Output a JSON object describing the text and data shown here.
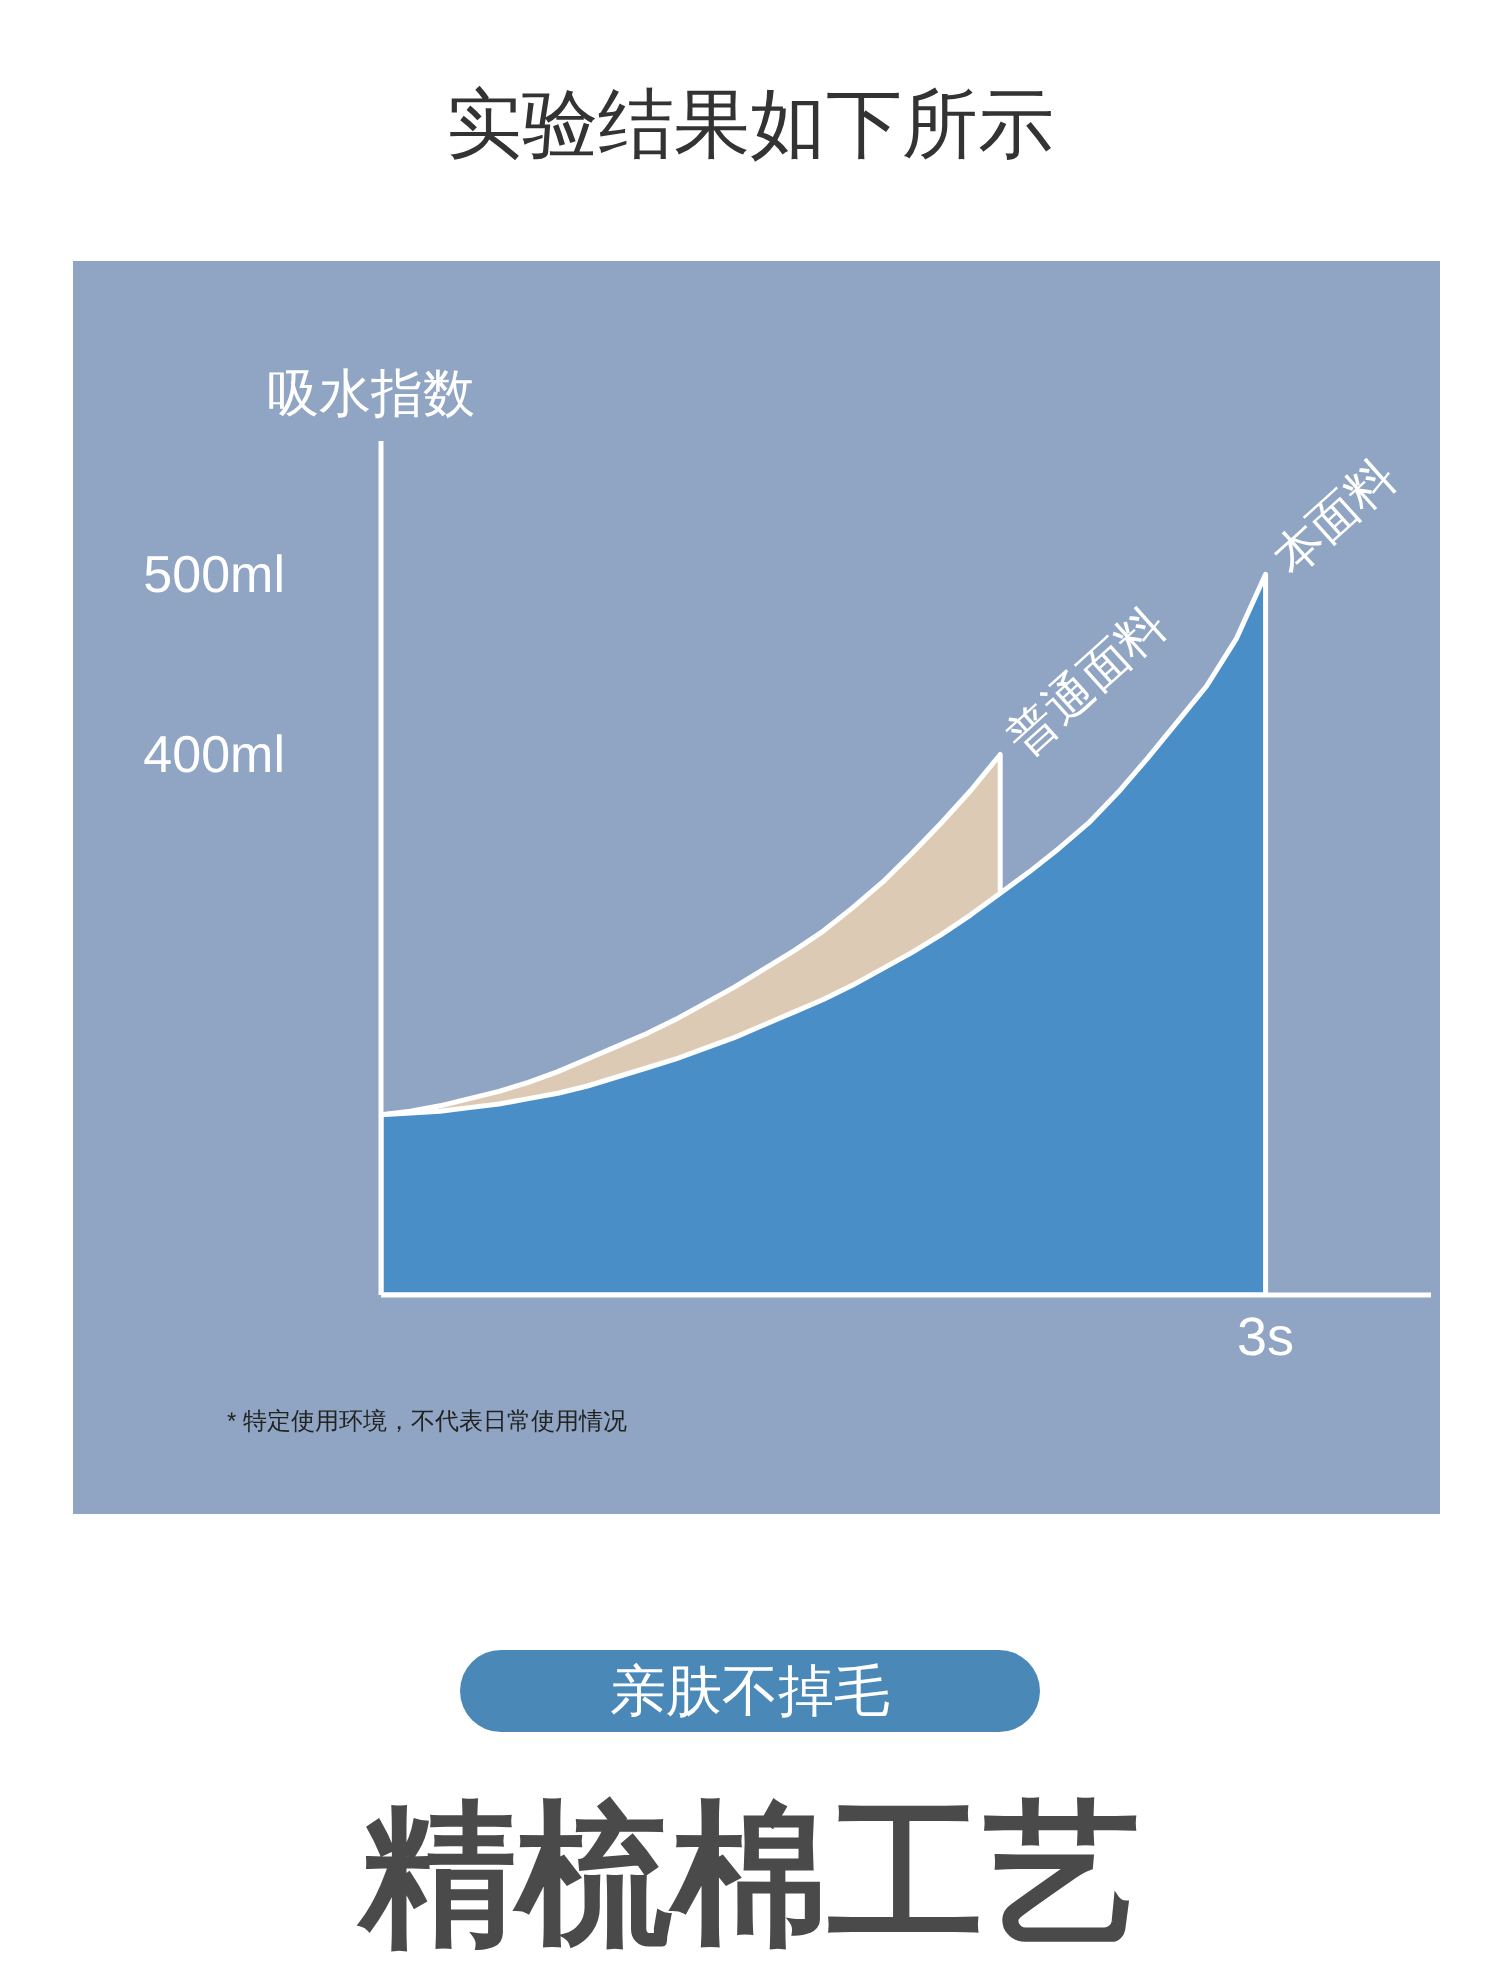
{
  "chart_data": {
    "type": "area",
    "title": "实验结果如下所示",
    "ylabel": "吸水指数",
    "categories": [
      null,
      null,
      null,
      null,
      null,
      null,
      null,
      null,
      null,
      null,
      null,
      null,
      null,
      null,
      null,
      null,
      null,
      null,
      null,
      null,
      null,
      null,
      null,
      null,
      null,
      null,
      null,
      null,
      null,
      null,
      "3s"
    ],
    "series": [
      {
        "name": "普通面料",
        "color": "#dccab5",
        "values": [
          200,
          202,
          205,
          209,
          213,
          218,
          224,
          231,
          238,
          245,
          253,
          262,
          271,
          281,
          291,
          302,
          315,
          329,
          345,
          362,
          380,
          400,
          null,
          null,
          null,
          null,
          null,
          null,
          null,
          null,
          null
        ]
      },
      {
        "name": "本面料",
        "color": "#4a8ec8",
        "values": [
          200,
          201,
          202,
          204,
          206,
          209,
          212,
          216,
          221,
          226,
          231,
          237,
          243,
          250,
          257,
          264,
          272,
          281,
          290,
          300,
          311,
          323,
          335,
          348,
          362,
          379,
          398,
          418,
          438,
          464,
          500
        ]
      }
    ],
    "ylim": [
      100,
      574
    ],
    "yticks": [
      {
        "value": 400,
        "label": "400ml"
      },
      {
        "value": 500,
        "label": "500ml"
      }
    ],
    "grid": false,
    "legend": false,
    "annotations": [
      "* 特定使用环境，不代表日常使用情况",
      "亲肤不掉毛",
      "精梳棉工艺"
    ]
  }
}
